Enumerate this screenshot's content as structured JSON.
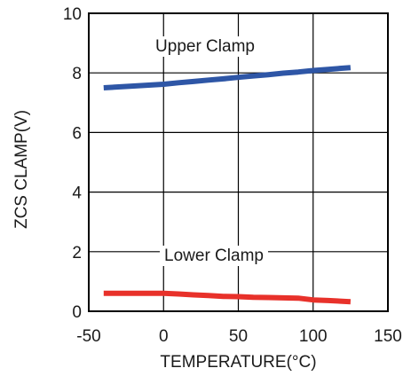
{
  "chart_data": {
    "type": "line",
    "xlabel": "TEMPERATURE(°C)",
    "ylabel": "ZCS CLAMP(V)",
    "xlim": [
      -50,
      150
    ],
    "ylim": [
      0,
      10
    ],
    "xticks": [
      -50,
      0,
      50,
      100,
      150
    ],
    "yticks": [
      0,
      2,
      4,
      6,
      8,
      10
    ],
    "grid": true,
    "legend": "none",
    "series": [
      {
        "name": "Upper Clamp",
        "color": "#2e56a6",
        "x": [
          -40,
          -20,
          0,
          10,
          20,
          30,
          40,
          50,
          60,
          70,
          80,
          90,
          100,
          110,
          125
        ],
        "y": [
          7.5,
          7.56,
          7.62,
          7.67,
          7.71,
          7.76,
          7.8,
          7.85,
          7.9,
          7.94,
          7.99,
          8.03,
          8.08,
          8.12,
          8.18
        ]
      },
      {
        "name": "Lower Clamp",
        "color": "#e8312a",
        "x": [
          -40,
          -20,
          0,
          10,
          20,
          30,
          40,
          50,
          60,
          70,
          80,
          90,
          100,
          110,
          125
        ],
        "y": [
          0.6,
          0.6,
          0.6,
          0.58,
          0.55,
          0.53,
          0.5,
          0.49,
          0.47,
          0.46,
          0.45,
          0.44,
          0.38,
          0.36,
          0.32
        ]
      }
    ]
  }
}
